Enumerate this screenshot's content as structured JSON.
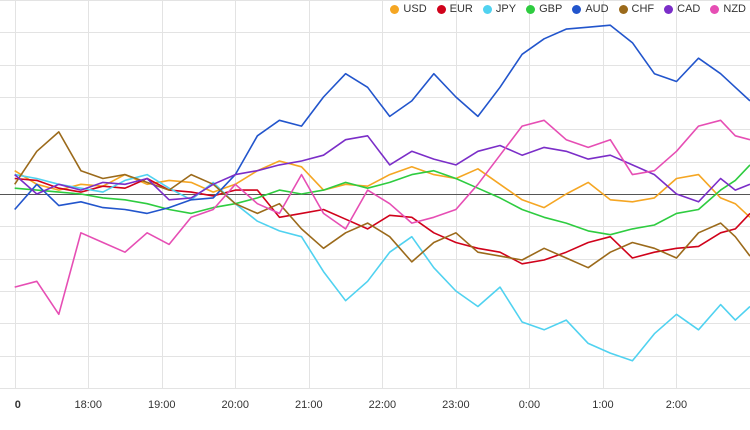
{
  "chart_data": {
    "type": "line",
    "title": "",
    "xlabel": "",
    "ylabel": "",
    "grid": true,
    "legend_position": "top-right",
    "x_ticks": [
      "0",
      "18:00",
      "19:00",
      "20:00",
      "21:00",
      "22:00",
      "23:00",
      "0:00",
      "1:00",
      "2:00"
    ],
    "x_range": [
      -0.2,
      10.0
    ],
    "y_range": [
      -1.0,
      1.0
    ],
    "baseline": 0,
    "series": [
      {
        "name": "USD",
        "color": "#f5a623",
        "points": [
          [
            0,
            0.12
          ],
          [
            0.3,
            0.05
          ],
          [
            0.6,
            0.02
          ],
          [
            0.9,
            0.05
          ],
          [
            1.2,
            0.04
          ],
          [
            1.5,
            0.1
          ],
          [
            1.8,
            0.05
          ],
          [
            2.1,
            0.07
          ],
          [
            2.4,
            0.06
          ],
          [
            2.7,
            0.01
          ],
          [
            3.0,
            0.05
          ],
          [
            3.3,
            0.12
          ],
          [
            3.6,
            0.17
          ],
          [
            3.9,
            0.14
          ],
          [
            4.2,
            0.02
          ],
          [
            4.5,
            0.05
          ],
          [
            4.8,
            0.04
          ],
          [
            5.1,
            0.1
          ],
          [
            5.4,
            0.14
          ],
          [
            5.7,
            0.1
          ],
          [
            6.0,
            0.08
          ],
          [
            6.3,
            0.13
          ],
          [
            6.6,
            0.05
          ],
          [
            6.9,
            -0.03
          ],
          [
            7.2,
            -0.07
          ],
          [
            7.5,
            0.0
          ],
          [
            7.8,
            0.06
          ],
          [
            8.1,
            -0.03
          ],
          [
            8.4,
            -0.04
          ],
          [
            8.7,
            -0.02
          ],
          [
            9.0,
            0.08
          ],
          [
            9.3,
            0.1
          ],
          [
            9.6,
            -0.02
          ],
          [
            9.8,
            -0.05
          ],
          [
            10.0,
            -0.12
          ]
        ]
      },
      {
        "name": "EUR",
        "color": "#d0021b",
        "points": [
          [
            0,
            0.08
          ],
          [
            0.3,
            0.07
          ],
          [
            0.6,
            0.03
          ],
          [
            0.9,
            0.01
          ],
          [
            1.2,
            0.04
          ],
          [
            1.5,
            0.03
          ],
          [
            1.8,
            0.08
          ],
          [
            2.1,
            0.02
          ],
          [
            2.4,
            0.01
          ],
          [
            2.7,
            -0.01
          ],
          [
            3.0,
            0.02
          ],
          [
            3.3,
            0.02
          ],
          [
            3.6,
            -0.12
          ],
          [
            3.9,
            -0.1
          ],
          [
            4.2,
            -0.08
          ],
          [
            4.5,
            -0.13
          ],
          [
            4.8,
            -0.18
          ],
          [
            5.1,
            -0.11
          ],
          [
            5.4,
            -0.12
          ],
          [
            5.7,
            -0.2
          ],
          [
            6.0,
            -0.25
          ],
          [
            6.3,
            -0.28
          ],
          [
            6.6,
            -0.3
          ],
          [
            6.9,
            -0.36
          ],
          [
            7.2,
            -0.34
          ],
          [
            7.5,
            -0.3
          ],
          [
            7.8,
            -0.25
          ],
          [
            8.1,
            -0.22
          ],
          [
            8.4,
            -0.33
          ],
          [
            8.7,
            -0.3
          ],
          [
            9.0,
            -0.28
          ],
          [
            9.3,
            -0.27
          ],
          [
            9.6,
            -0.2
          ],
          [
            9.8,
            -0.18
          ],
          [
            10.0,
            -0.1
          ]
        ]
      },
      {
        "name": "JPY",
        "color": "#50d2f0",
        "points": [
          [
            0,
            0.1
          ],
          [
            0.3,
            0.08
          ],
          [
            0.6,
            0.05
          ],
          [
            0.9,
            0.03
          ],
          [
            1.2,
            0.01
          ],
          [
            1.5,
            0.07
          ],
          [
            1.8,
            0.1
          ],
          [
            2.1,
            0.03
          ],
          [
            2.4,
            -0.03
          ],
          [
            2.7,
            0.06
          ],
          [
            3.0,
            -0.05
          ],
          [
            3.3,
            -0.14
          ],
          [
            3.6,
            -0.19
          ],
          [
            3.9,
            -0.22
          ],
          [
            4.2,
            -0.4
          ],
          [
            4.5,
            -0.55
          ],
          [
            4.8,
            -0.45
          ],
          [
            5.1,
            -0.3
          ],
          [
            5.4,
            -0.22
          ],
          [
            5.7,
            -0.38
          ],
          [
            6.0,
            -0.5
          ],
          [
            6.3,
            -0.58
          ],
          [
            6.6,
            -0.48
          ],
          [
            6.9,
            -0.66
          ],
          [
            7.2,
            -0.7
          ],
          [
            7.5,
            -0.65
          ],
          [
            7.8,
            -0.77
          ],
          [
            8.1,
            -0.82
          ],
          [
            8.4,
            -0.86
          ],
          [
            8.7,
            -0.72
          ],
          [
            9.0,
            -0.62
          ],
          [
            9.3,
            -0.7
          ],
          [
            9.6,
            -0.57
          ],
          [
            9.8,
            -0.65
          ],
          [
            10.0,
            -0.58
          ]
        ]
      },
      {
        "name": "GBP",
        "color": "#2ecc40",
        "points": [
          [
            0,
            0.03
          ],
          [
            0.3,
            0.02
          ],
          [
            0.6,
            0.01
          ],
          [
            0.9,
            0.0
          ],
          [
            1.2,
            -0.02
          ],
          [
            1.5,
            -0.03
          ],
          [
            1.8,
            -0.05
          ],
          [
            2.1,
            -0.08
          ],
          [
            2.4,
            -0.1
          ],
          [
            2.7,
            -0.07
          ],
          [
            3.0,
            -0.05
          ],
          [
            3.3,
            -0.02
          ],
          [
            3.6,
            0.02
          ],
          [
            3.9,
            0.0
          ],
          [
            4.2,
            0.02
          ],
          [
            4.5,
            0.06
          ],
          [
            4.8,
            0.03
          ],
          [
            5.1,
            0.06
          ],
          [
            5.4,
            0.1
          ],
          [
            5.7,
            0.12
          ],
          [
            6.0,
            0.08
          ],
          [
            6.3,
            0.03
          ],
          [
            6.6,
            -0.02
          ],
          [
            6.9,
            -0.08
          ],
          [
            7.2,
            -0.12
          ],
          [
            7.5,
            -0.15
          ],
          [
            7.8,
            -0.19
          ],
          [
            8.1,
            -0.21
          ],
          [
            8.4,
            -0.18
          ],
          [
            8.7,
            -0.16
          ],
          [
            9.0,
            -0.1
          ],
          [
            9.3,
            -0.08
          ],
          [
            9.6,
            0.02
          ],
          [
            9.8,
            0.07
          ],
          [
            10.0,
            0.15
          ]
        ]
      },
      {
        "name": "AUD",
        "color": "#2255cc",
        "points": [
          [
            0,
            -0.08
          ],
          [
            0.3,
            0.05
          ],
          [
            0.6,
            -0.06
          ],
          [
            0.9,
            -0.04
          ],
          [
            1.2,
            -0.07
          ],
          [
            1.5,
            -0.08
          ],
          [
            1.8,
            -0.1
          ],
          [
            2.1,
            -0.07
          ],
          [
            2.4,
            -0.03
          ],
          [
            2.7,
            -0.02
          ],
          [
            3.0,
            0.1
          ],
          [
            3.3,
            0.3
          ],
          [
            3.6,
            0.38
          ],
          [
            3.9,
            0.35
          ],
          [
            4.2,
            0.5
          ],
          [
            4.5,
            0.62
          ],
          [
            4.8,
            0.55
          ],
          [
            5.1,
            0.4
          ],
          [
            5.4,
            0.48
          ],
          [
            5.7,
            0.62
          ],
          [
            6.0,
            0.5
          ],
          [
            6.3,
            0.4
          ],
          [
            6.6,
            0.55
          ],
          [
            6.9,
            0.72
          ],
          [
            7.2,
            0.8
          ],
          [
            7.5,
            0.85
          ],
          [
            7.8,
            0.86
          ],
          [
            8.1,
            0.87
          ],
          [
            8.4,
            0.78
          ],
          [
            8.7,
            0.62
          ],
          [
            9.0,
            0.58
          ],
          [
            9.3,
            0.7
          ],
          [
            9.6,
            0.62
          ],
          [
            9.8,
            0.55
          ],
          [
            10.0,
            0.48
          ]
        ]
      },
      {
        "name": "CHF",
        "color": "#9b6a1b",
        "points": [
          [
            0,
            0.05
          ],
          [
            0.3,
            0.22
          ],
          [
            0.6,
            0.32
          ],
          [
            0.9,
            0.12
          ],
          [
            1.2,
            0.08
          ],
          [
            1.5,
            0.1
          ],
          [
            1.8,
            0.06
          ],
          [
            2.1,
            0.02
          ],
          [
            2.4,
            0.1
          ],
          [
            2.7,
            0.05
          ],
          [
            3.0,
            -0.05
          ],
          [
            3.3,
            -0.1
          ],
          [
            3.6,
            -0.05
          ],
          [
            3.9,
            -0.18
          ],
          [
            4.2,
            -0.28
          ],
          [
            4.5,
            -0.2
          ],
          [
            4.8,
            -0.15
          ],
          [
            5.1,
            -0.22
          ],
          [
            5.4,
            -0.35
          ],
          [
            5.7,
            -0.25
          ],
          [
            6.0,
            -0.2
          ],
          [
            6.3,
            -0.3
          ],
          [
            6.6,
            -0.32
          ],
          [
            6.9,
            -0.34
          ],
          [
            7.2,
            -0.28
          ],
          [
            7.5,
            -0.33
          ],
          [
            7.8,
            -0.38
          ],
          [
            8.1,
            -0.3
          ],
          [
            8.4,
            -0.25
          ],
          [
            8.7,
            -0.28
          ],
          [
            9.0,
            -0.33
          ],
          [
            9.3,
            -0.2
          ],
          [
            9.6,
            -0.15
          ],
          [
            9.8,
            -0.22
          ],
          [
            10.0,
            -0.32
          ]
        ]
      },
      {
        "name": "CAD",
        "color": "#7b2ec8",
        "points": [
          [
            0,
            0.1
          ],
          [
            0.3,
            0.0
          ],
          [
            0.6,
            0.05
          ],
          [
            0.9,
            0.02
          ],
          [
            1.2,
            0.06
          ],
          [
            1.5,
            0.05
          ],
          [
            1.8,
            0.08
          ],
          [
            2.1,
            -0.03
          ],
          [
            2.4,
            -0.02
          ],
          [
            2.7,
            0.05
          ],
          [
            3.0,
            0.1
          ],
          [
            3.3,
            0.12
          ],
          [
            3.6,
            0.15
          ],
          [
            3.9,
            0.17
          ],
          [
            4.2,
            0.2
          ],
          [
            4.5,
            0.28
          ],
          [
            4.8,
            0.3
          ],
          [
            5.1,
            0.15
          ],
          [
            5.4,
            0.22
          ],
          [
            5.7,
            0.18
          ],
          [
            6.0,
            0.15
          ],
          [
            6.3,
            0.22
          ],
          [
            6.6,
            0.25
          ],
          [
            6.9,
            0.2
          ],
          [
            7.2,
            0.24
          ],
          [
            7.5,
            0.22
          ],
          [
            7.8,
            0.18
          ],
          [
            8.1,
            0.2
          ],
          [
            8.4,
            0.15
          ],
          [
            8.7,
            0.1
          ],
          [
            9.0,
            0.0
          ],
          [
            9.3,
            -0.04
          ],
          [
            9.6,
            0.08
          ],
          [
            9.8,
            0.02
          ],
          [
            10.0,
            0.05
          ]
        ]
      },
      {
        "name": "NZD",
        "color": "#e64eb4",
        "points": [
          [
            0,
            -0.48
          ],
          [
            0.3,
            -0.45
          ],
          [
            0.6,
            -0.62
          ],
          [
            0.9,
            -0.2
          ],
          [
            1.2,
            -0.25
          ],
          [
            1.5,
            -0.3
          ],
          [
            1.8,
            -0.2
          ],
          [
            2.1,
            -0.26
          ],
          [
            2.4,
            -0.12
          ],
          [
            2.7,
            -0.08
          ],
          [
            3.0,
            0.05
          ],
          [
            3.3,
            -0.05
          ],
          [
            3.6,
            -0.1
          ],
          [
            3.9,
            0.1
          ],
          [
            4.2,
            -0.1
          ],
          [
            4.5,
            -0.18
          ],
          [
            4.8,
            0.02
          ],
          [
            5.1,
            -0.05
          ],
          [
            5.4,
            -0.15
          ],
          [
            5.7,
            -0.12
          ],
          [
            6.0,
            -0.08
          ],
          [
            6.3,
            0.05
          ],
          [
            6.6,
            0.2
          ],
          [
            6.9,
            0.35
          ],
          [
            7.2,
            0.38
          ],
          [
            7.5,
            0.28
          ],
          [
            7.8,
            0.24
          ],
          [
            8.1,
            0.28
          ],
          [
            8.4,
            0.1
          ],
          [
            8.7,
            0.12
          ],
          [
            9.0,
            0.22
          ],
          [
            9.3,
            0.35
          ],
          [
            9.6,
            0.38
          ],
          [
            9.8,
            0.3
          ],
          [
            10.0,
            0.28
          ]
        ]
      }
    ]
  }
}
